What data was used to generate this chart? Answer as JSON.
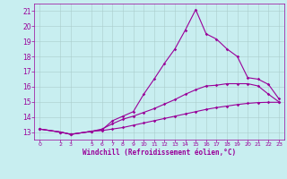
{
  "xlabel": "Windchill (Refroidissement éolien,°C)",
  "bg_color": "#c8eef0",
  "line_color": "#990099",
  "grid_color": "#aacccc",
  "xlim": [
    -0.5,
    23.5
  ],
  "ylim": [
    12.5,
    21.5
  ],
  "xticks": [
    0,
    2,
    3,
    5,
    6,
    7,
    8,
    9,
    10,
    11,
    12,
    13,
    14,
    15,
    16,
    17,
    18,
    19,
    20,
    21,
    22,
    23
  ],
  "yticks": [
    13,
    14,
    15,
    16,
    17,
    18,
    19,
    20,
    21
  ],
  "curve1_x": [
    0,
    2,
    3,
    5,
    6,
    7,
    8,
    9,
    10,
    11,
    12,
    13,
    14,
    15,
    16,
    17,
    18,
    19,
    20,
    21,
    22,
    23
  ],
  "curve1_y": [
    13.2,
    13.0,
    12.85,
    13.05,
    13.15,
    13.75,
    14.05,
    14.35,
    15.5,
    16.5,
    17.55,
    18.5,
    19.75,
    21.1,
    19.5,
    19.15,
    18.5,
    18.0,
    16.6,
    16.5,
    16.15,
    15.2
  ],
  "curve2_x": [
    0,
    2,
    3,
    5,
    6,
    7,
    8,
    9,
    10,
    11,
    12,
    13,
    14,
    15,
    16,
    17,
    18,
    19,
    20,
    21,
    22,
    23
  ],
  "curve2_y": [
    13.2,
    13.0,
    12.85,
    13.05,
    13.2,
    13.55,
    13.85,
    14.05,
    14.3,
    14.55,
    14.85,
    15.15,
    15.5,
    15.8,
    16.05,
    16.1,
    16.2,
    16.2,
    16.2,
    16.05,
    15.5,
    15.0
  ],
  "curve3_x": [
    0,
    2,
    3,
    5,
    6,
    7,
    8,
    9,
    10,
    11,
    12,
    13,
    14,
    15,
    16,
    17,
    18,
    19,
    20,
    21,
    22,
    23
  ],
  "curve3_y": [
    13.2,
    13.0,
    12.85,
    13.05,
    13.1,
    13.2,
    13.3,
    13.45,
    13.6,
    13.75,
    13.9,
    14.05,
    14.2,
    14.35,
    14.5,
    14.62,
    14.72,
    14.82,
    14.9,
    14.95,
    14.97,
    14.97
  ]
}
